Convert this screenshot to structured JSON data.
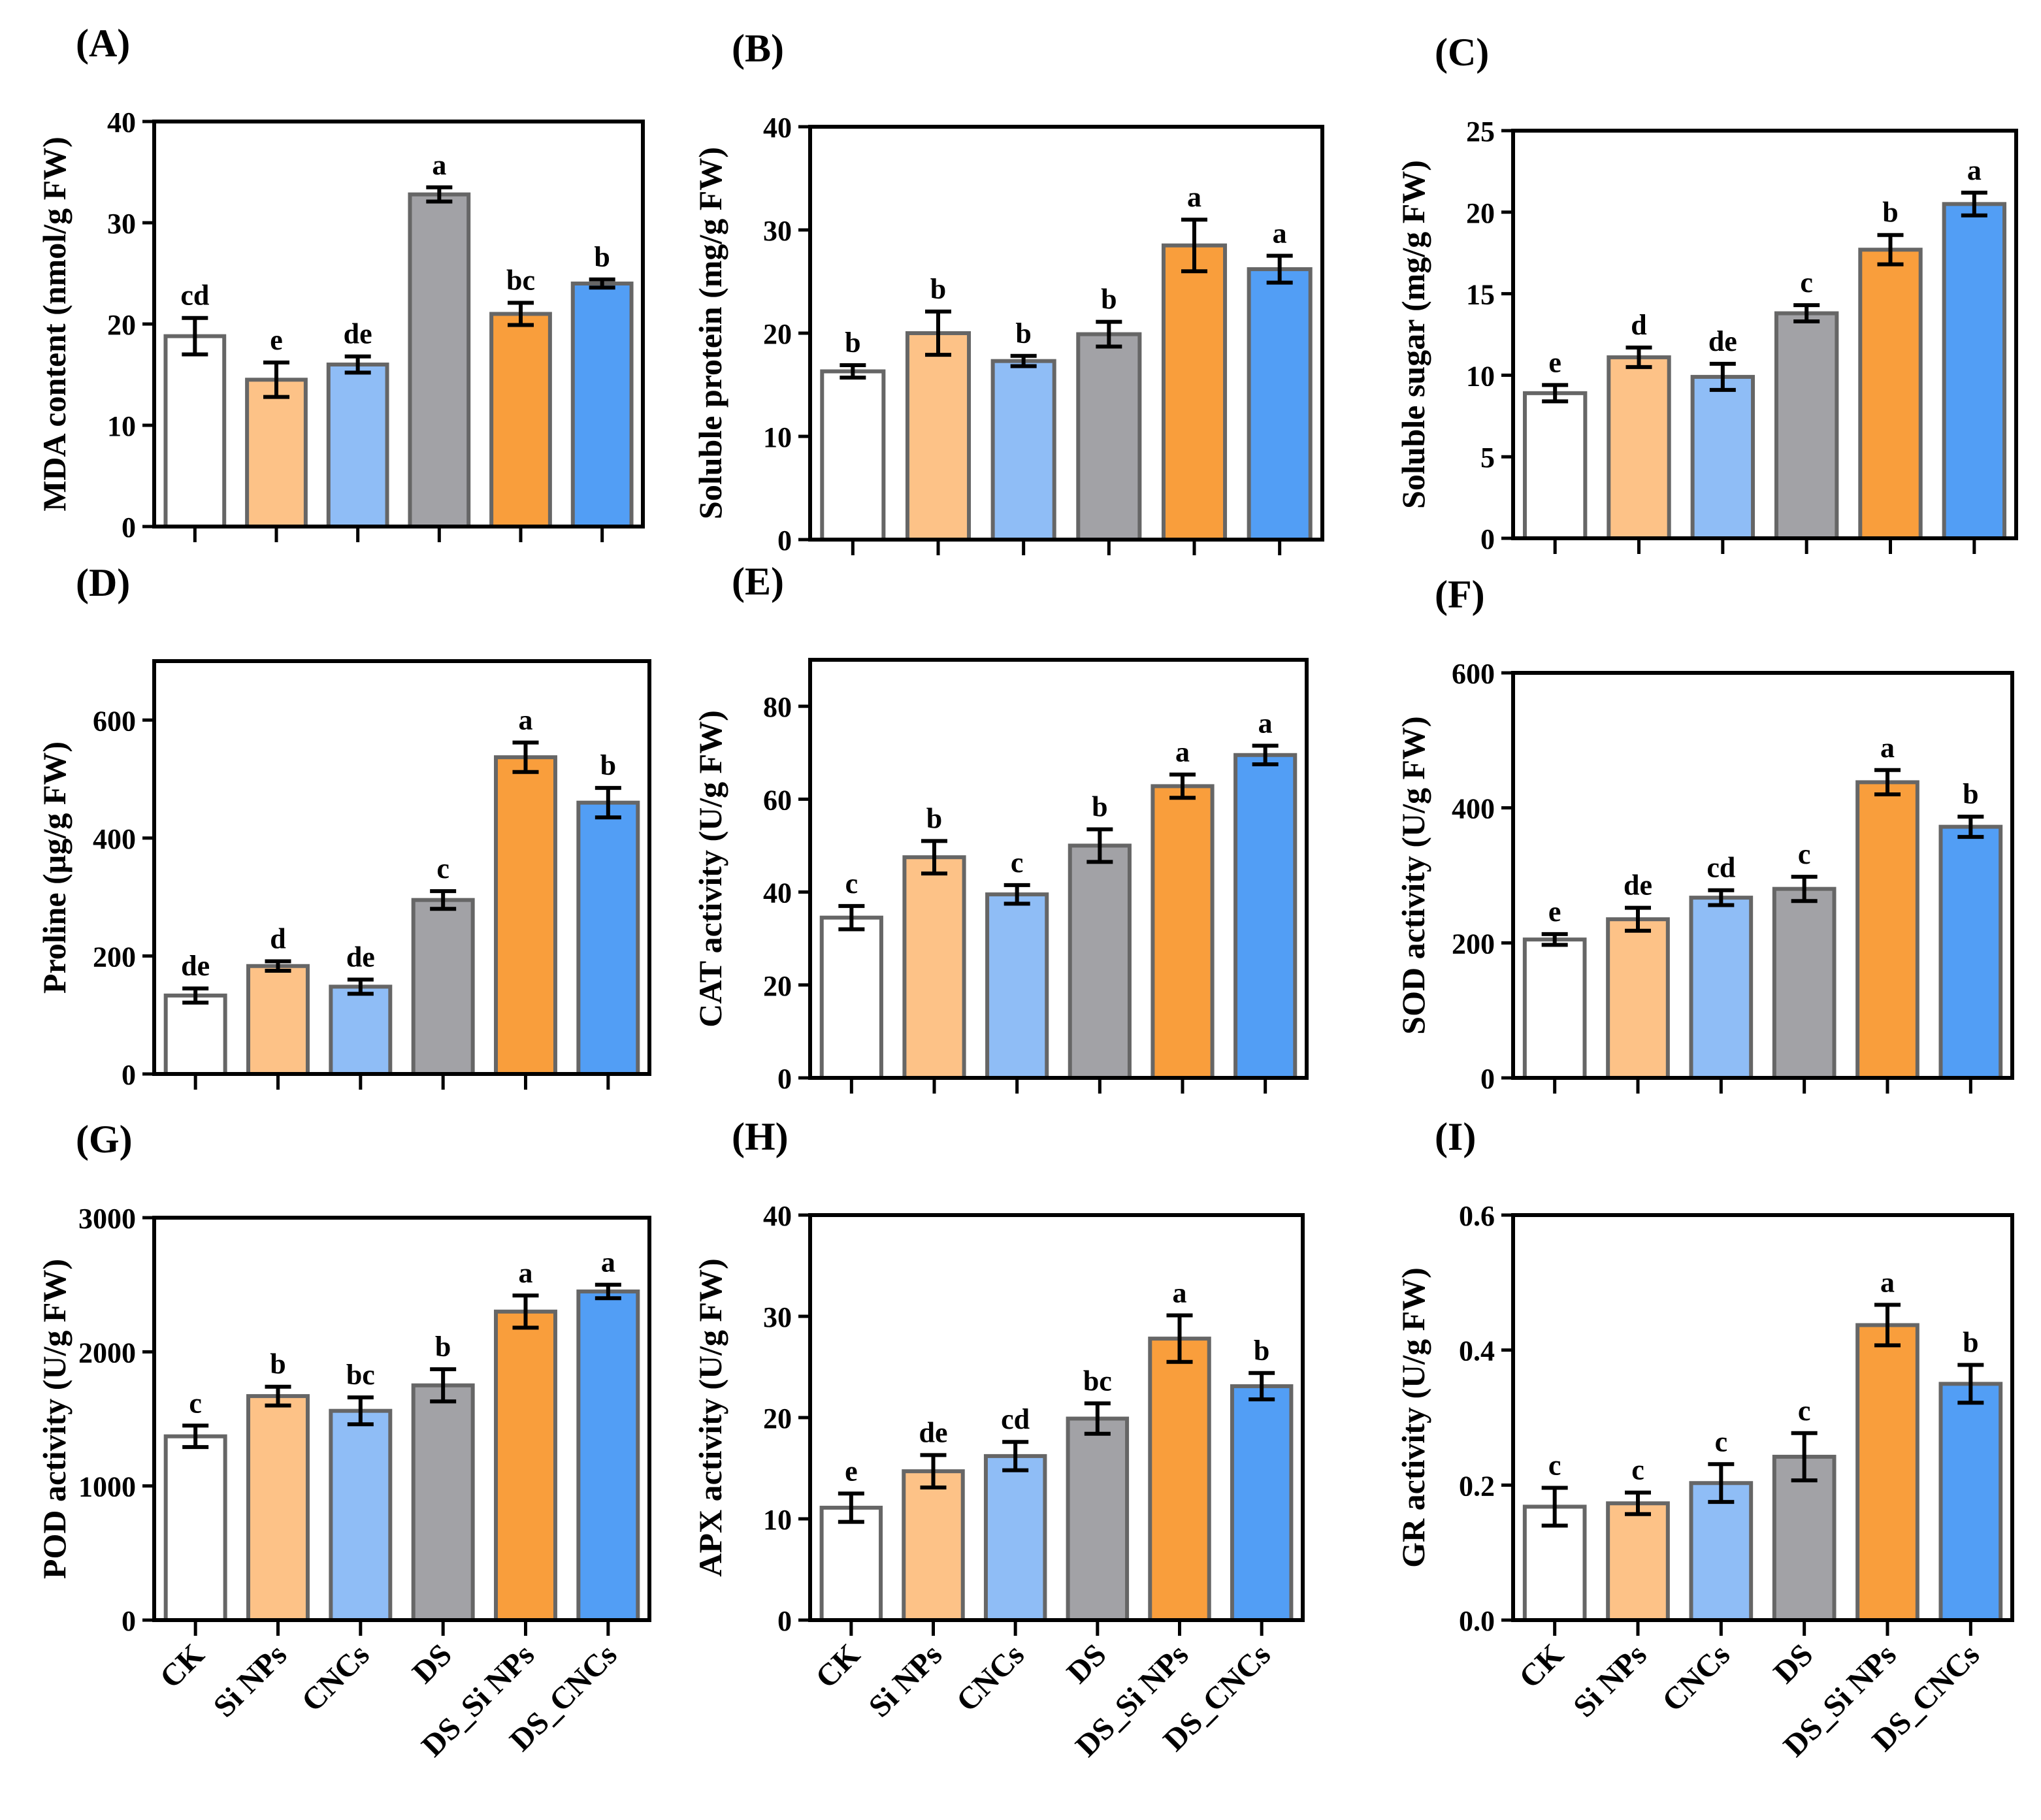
{
  "categories": [
    "CK",
    "Si NPs",
    "CNCs",
    "DS",
    "DS_Si NPs",
    "DS_CNCs"
  ],
  "colors": [
    "#ffffff",
    "#fdc287",
    "#8fbdf6",
    "#a2a2a6",
    "#f99e3c",
    "#529ef5"
  ],
  "edge_color": "#666666",
  "chart_data": [
    {
      "type": "bar",
      "panel": "(A)",
      "ylabel": "MDA content (nmol/g FW)",
      "ylim": [
        0,
        40
      ],
      "yticks": [
        0,
        10,
        20,
        30,
        40
      ],
      "values": [
        18.8,
        14.5,
        16.0,
        32.8,
        21.0,
        24.0
      ],
      "errors": [
        1.8,
        1.7,
        0.8,
        0.7,
        1.1,
        0.4
      ],
      "letters": [
        "cd",
        "e",
        "de",
        "a",
        "bc",
        "b"
      ]
    },
    {
      "type": "bar",
      "panel": "(B)",
      "ylabel": "Soluble protein (mg/g FW)",
      "ylim": [
        0,
        40
      ],
      "yticks": [
        0,
        10,
        20,
        30,
        40
      ],
      "values": [
        16.3,
        20.0,
        17.3,
        19.9,
        28.5,
        26.2
      ],
      "errors": [
        0.6,
        2.1,
        0.5,
        1.2,
        2.5,
        1.3
      ],
      "letters": [
        "b",
        "b",
        "b",
        "b",
        "a",
        "a"
      ]
    },
    {
      "type": "bar",
      "panel": "(C)",
      "ylabel": "Soluble sugar (mg/g FW)",
      "ylim": [
        0,
        25
      ],
      "yticks": [
        0,
        5,
        10,
        15,
        20,
        25
      ],
      "values": [
        8.9,
        11.1,
        9.9,
        13.8,
        17.7,
        20.5
      ],
      "errors": [
        0.5,
        0.6,
        0.8,
        0.5,
        0.9,
        0.7
      ],
      "letters": [
        "e",
        "d",
        "de",
        "c",
        "b",
        "a"
      ]
    },
    {
      "type": "bar",
      "panel": "(D)",
      "ylabel": "Proline (µg/g FW)",
      "ylim": [
        0,
        700
      ],
      "yticks": [
        0,
        200,
        400,
        600
      ],
      "values": [
        133,
        183,
        148,
        295,
        537,
        460
      ],
      "errors": [
        12,
        8,
        12,
        15,
        25,
        25
      ],
      "letters": [
        "de",
        "d",
        "de",
        "c",
        "a",
        "b"
      ]
    },
    {
      "type": "bar",
      "panel": "(E)",
      "ylabel": "CAT activity (U/g FW)",
      "ylim": [
        0,
        90
      ],
      "yticks": [
        0,
        20,
        40,
        60,
        80
      ],
      "values": [
        34.5,
        47.5,
        39.5,
        50.0,
        62.8,
        69.5
      ],
      "errors": [
        2.5,
        3.5,
        2.0,
        3.5,
        2.5,
        2.0
      ],
      "letters": [
        "c",
        "b",
        "c",
        "b",
        "a",
        "a"
      ]
    },
    {
      "type": "bar",
      "panel": "(F)",
      "ylabel": "SOD activity (U/g FW)",
      "ylim": [
        0,
        600
      ],
      "yticks": [
        0,
        200,
        400,
        600
      ],
      "values": [
        205,
        235,
        267,
        280,
        438,
        372
      ],
      "errors": [
        8,
        17,
        11,
        18,
        18,
        15
      ],
      "letters": [
        "e",
        "de",
        "cd",
        "c",
        "a",
        "b"
      ]
    },
    {
      "type": "bar",
      "panel": "(G)",
      "ylabel": "POD activity (U/g FW)",
      "ylim": [
        0,
        3000
      ],
      "yticks": [
        0,
        1000,
        2000,
        3000
      ],
      "values": [
        1370,
        1670,
        1560,
        1750,
        2300,
        2450
      ],
      "errors": [
        80,
        70,
        100,
        120,
        120,
        50
      ],
      "letters": [
        "c",
        "b",
        "bc",
        "b",
        "a",
        "a"
      ]
    },
    {
      "type": "bar",
      "panel": "(H)",
      "ylabel": "APX activity (U/g FW)",
      "ylim": [
        0,
        40
      ],
      "yticks": [
        0,
        10,
        20,
        30,
        40
      ],
      "values": [
        11.1,
        14.7,
        16.2,
        19.9,
        27.8,
        23.1
      ],
      "errors": [
        1.4,
        1.6,
        1.4,
        1.5,
        2.3,
        1.3
      ],
      "letters": [
        "e",
        "de",
        "cd",
        "bc",
        "a",
        "b"
      ]
    },
    {
      "type": "bar",
      "panel": "(I)",
      "ylabel": "GR activity (U/g FW)",
      "ylim": [
        0,
        0.6
      ],
      "yticks": [
        "0.0",
        "0.2",
        "0.4",
        "0.6"
      ],
      "values": [
        0.168,
        0.173,
        0.203,
        0.242,
        0.437,
        0.35
      ],
      "errors": [
        0.028,
        0.016,
        0.028,
        0.035,
        0.03,
        0.028
      ],
      "letters": [
        "c",
        "c",
        "c",
        "c",
        "a",
        "b"
      ]
    }
  ]
}
